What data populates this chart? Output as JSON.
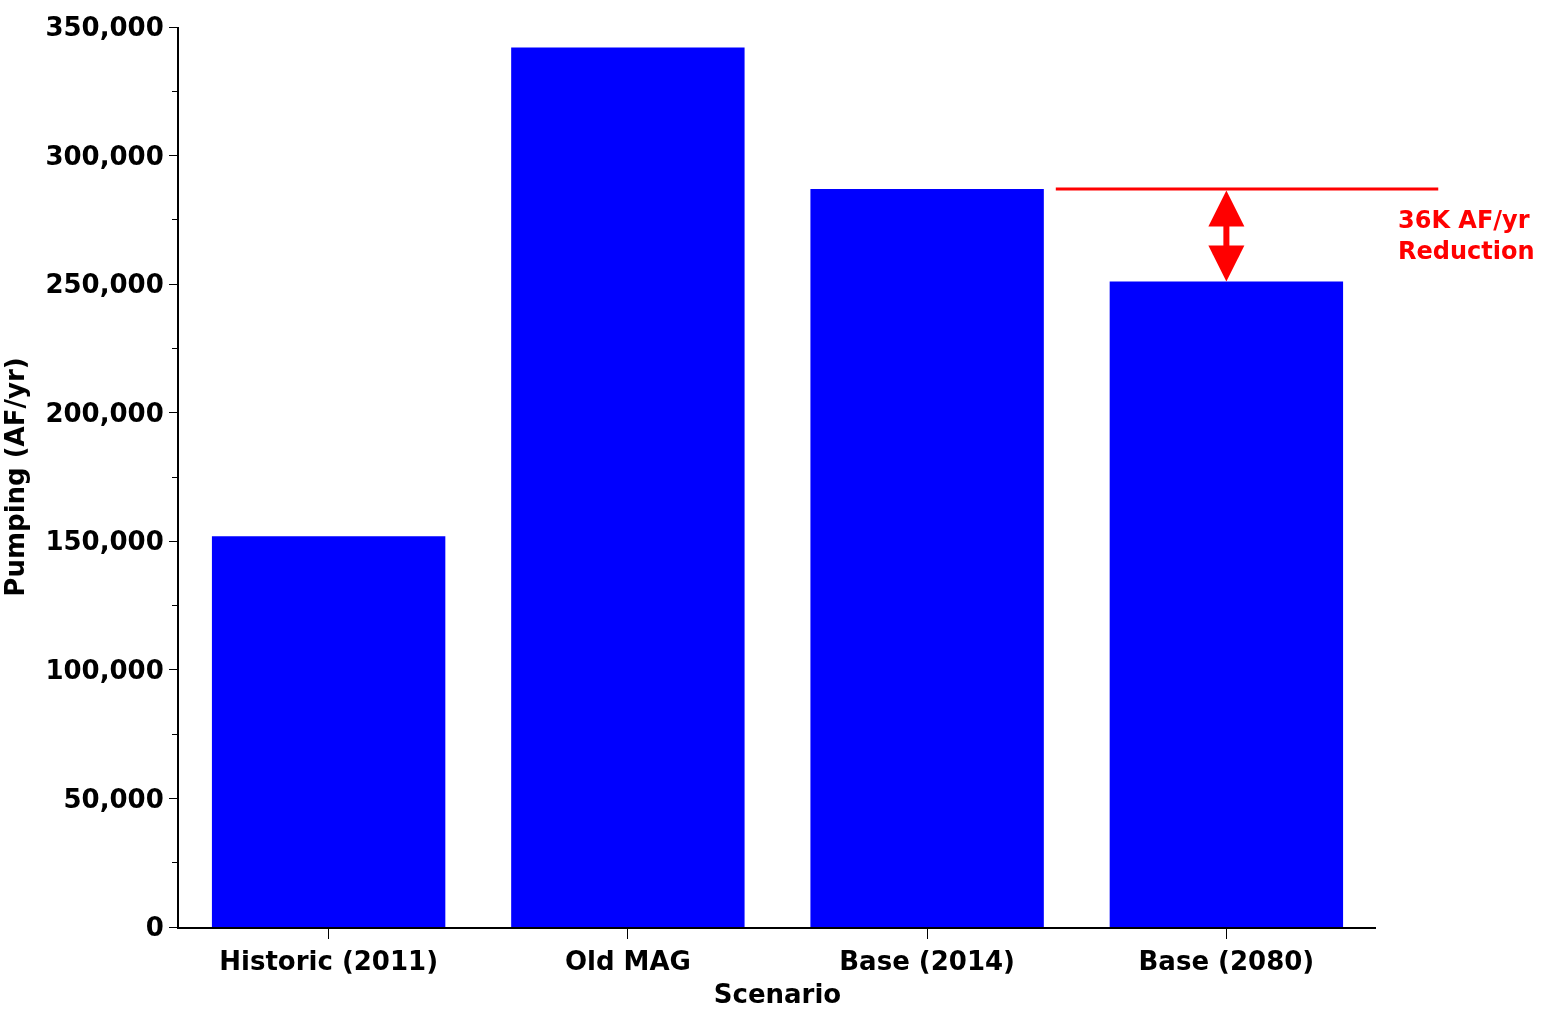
{
  "chart_data": {
    "type": "bar",
    "xlabel": "Scenario",
    "ylabel": "Pumping (AF/yr)",
    "categories": [
      "Historic (2011)",
      "Old MAG",
      "Base (2014)",
      "Base (2080)"
    ],
    "values": [
      152000,
      342000,
      287000,
      251000
    ],
    "color": "#0000ff",
    "ylim": [
      0,
      350000
    ],
    "yticks": [
      {
        "value": 0,
        "label": "0"
      },
      {
        "value": 50000,
        "label": "50,000"
      },
      {
        "value": 100000,
        "label": "100,000"
      },
      {
        "value": 150000,
        "label": "150,000"
      },
      {
        "value": 200000,
        "label": "200,000"
      },
      {
        "value": 250000,
        "label": "250,000"
      },
      {
        "value": 300000,
        "label": "300,000"
      },
      {
        "value": 350000,
        "label": "350,000"
      }
    ],
    "ref_lines": [
      {
        "axis": "y",
        "value": 287000,
        "color": "#ff0000"
      }
    ],
    "annotations": [
      "36K AF/yr\nReduction"
    ]
  }
}
